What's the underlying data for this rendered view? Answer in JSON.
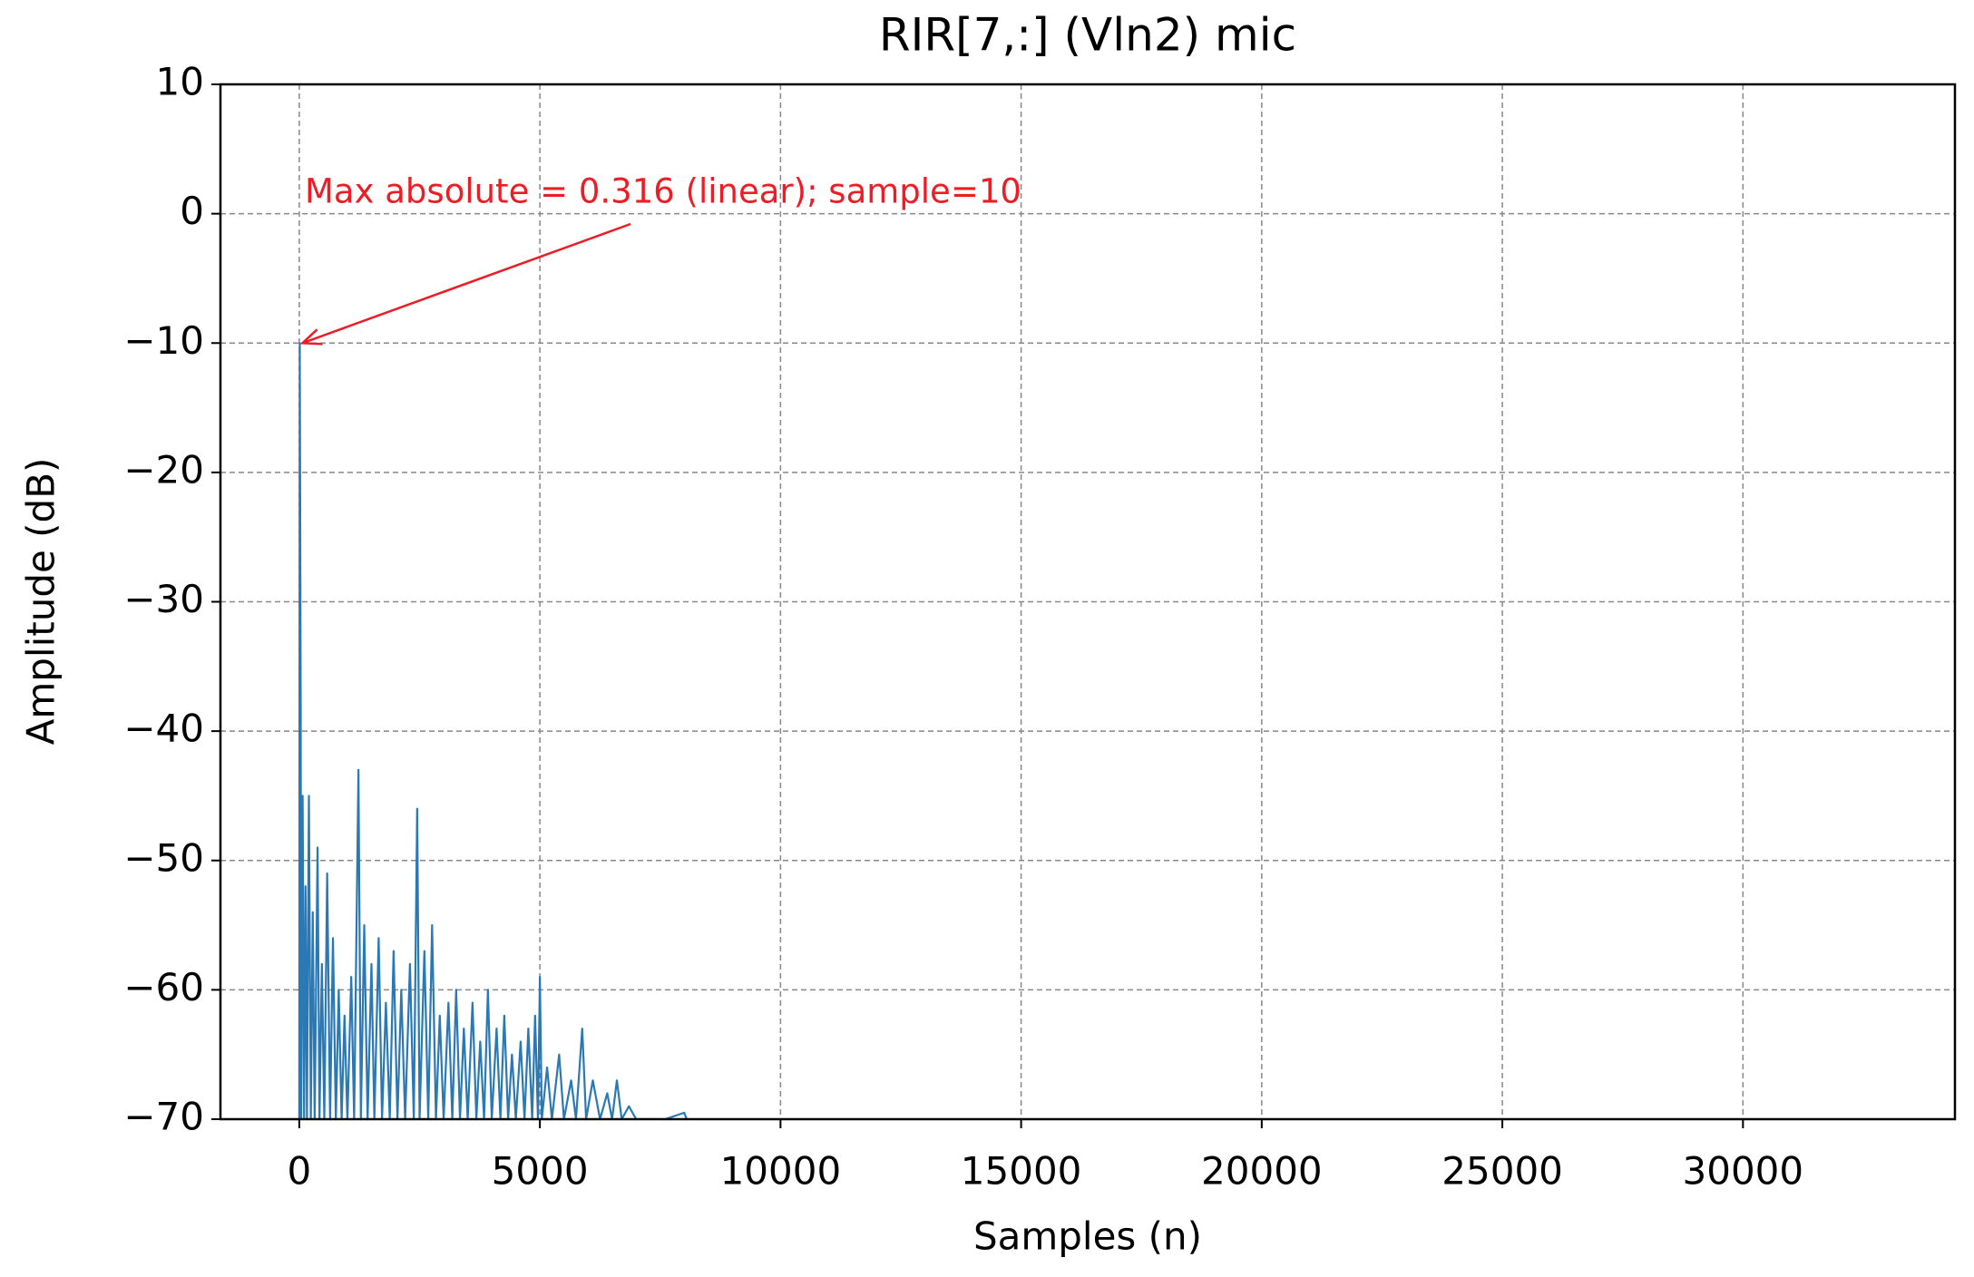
{
  "chart_data": {
    "type": "line",
    "title": "RIR[7,:] (Vln2) mic",
    "x_label": "Samples (n)",
    "y_label": "Amplitude (dB)",
    "x": [
      0,
      10,
      20,
      30,
      40,
      70,
      100,
      130,
      160,
      200,
      240,
      280,
      320,
      380,
      420,
      470,
      520,
      580,
      640,
      700,
      760,
      820,
      880,
      940,
      1000,
      1080,
      1140,
      1230,
      1280,
      1350,
      1420,
      1500,
      1560,
      1650,
      1720,
      1800,
      1880,
      1960,
      2040,
      2120,
      2200,
      2300,
      2380,
      2450,
      2500,
      2600,
      2680,
      2760,
      2840,
      2920,
      3000,
      3100,
      3180,
      3260,
      3340,
      3420,
      3500,
      3600,
      3680,
      3760,
      3840,
      3920,
      4000,
      4100,
      4180,
      4260,
      4340,
      4420,
      4500,
      4600,
      4680,
      4760,
      4840,
      4900,
      4960,
      5000,
      5040,
      5150,
      5250,
      5400,
      5500,
      5650,
      5750,
      5880,
      5960,
      6100,
      6250,
      6400,
      6500,
      6600,
      6700,
      6850,
      7000,
      7600,
      8000,
      8050
    ],
    "series": [
      {
        "name": "RIR",
        "color": "#2a78b4",
        "values": [
          -70,
          -10,
          -24,
          -38,
          -70,
          -45,
          -70,
          -52,
          -70,
          -45,
          -70,
          -54,
          -70,
          -49,
          -70,
          -58,
          -70,
          -51,
          -70,
          -56,
          -70,
          -60,
          -70,
          -62,
          -70,
          -59,
          -70,
          -43,
          -70,
          -55,
          -70,
          -58,
          -70,
          -56,
          -70,
          -61,
          -70,
          -57,
          -70,
          -60,
          -70,
          -58,
          -70,
          -46,
          -70,
          -57,
          -70,
          -55,
          -70,
          -62,
          -70,
          -61,
          -70,
          -60,
          -70,
          -63,
          -70,
          -61,
          -70,
          -64,
          -70,
          -60,
          -70,
          -63,
          -70,
          -62,
          -70,
          -65,
          -70,
          -64,
          -70,
          -63,
          -70,
          -62,
          -70,
          -59,
          -70,
          -66,
          -70,
          -65,
          -70,
          -67,
          -70,
          -63,
          -70,
          -67,
          -70,
          -68,
          -70,
          -67,
          -70,
          -69,
          -70,
          -70,
          -69.5,
          -70
        ]
      }
    ],
    "xlim": [
      -1638,
      34405
    ],
    "ylim": [
      -70,
      10
    ],
    "xticks": [
      0,
      5000,
      10000,
      15000,
      20000,
      25000,
      30000
    ],
    "yticks": [
      {
        "value": -70,
        "label": "−70"
      },
      {
        "value": -60,
        "label": "−60"
      },
      {
        "value": -50,
        "label": "−50"
      },
      {
        "value": -40,
        "label": "−40"
      },
      {
        "value": -30,
        "label": "−30"
      },
      {
        "value": -20,
        "label": "−20"
      },
      {
        "value": -10,
        "label": "−10"
      },
      0,
      10
    ],
    "grid": true,
    "annotation": {
      "text": "Max absolute = 0.316 (linear); sample=10",
      "color": "#ee1c25"
    }
  }
}
